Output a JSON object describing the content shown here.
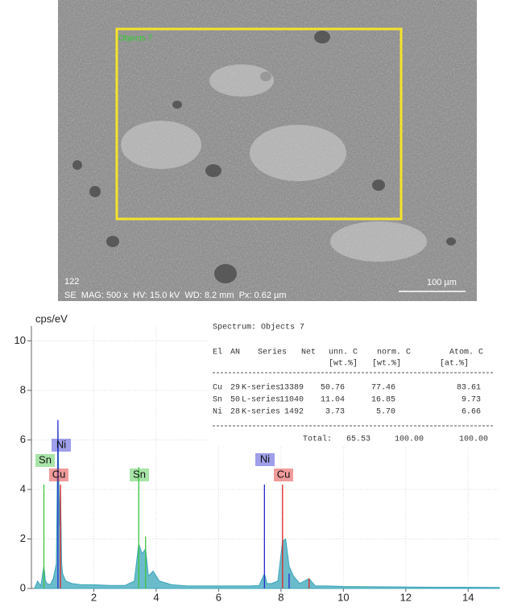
{
  "image": {
    "region_label": "Objects 7",
    "frame_number": "122",
    "info": "SE  MAG: 500 x  HV: 15.0 kV  WD: 8.2 mm  Px: 0.62 µm",
    "scale_bar": "100 µm"
  },
  "chart_data": {
    "type": "spectrum",
    "y_label": "cps/eV",
    "xlim": [
      0,
      15
    ],
    "ylim": [
      0,
      10.6
    ],
    "xticks": [
      2,
      4,
      6,
      8,
      10,
      12,
      14
    ],
    "yticks": [
      0,
      2,
      4,
      6,
      8,
      10
    ],
    "grid": true,
    "spectrum": {
      "color": "#3aa6b9",
      "x": [
        0.1,
        0.2,
        0.3,
        0.35,
        0.4,
        0.45,
        0.5,
        0.6,
        0.7,
        0.8,
        0.85,
        0.9,
        0.93,
        0.97,
        1.0,
        1.1,
        1.3,
        1.6,
        2.0,
        2.5,
        3.0,
        3.3,
        3.44,
        3.55,
        3.66,
        3.75,
        3.9,
        4.1,
        4.5,
        5,
        5.5,
        6,
        6.5,
        7,
        7.3,
        7.47,
        7.55,
        7.7,
        7.9,
        8.05,
        8.15,
        8.26,
        8.4,
        8.6,
        8.9,
        9.1,
        9.5,
        10,
        11,
        12,
        13,
        14,
        15
      ],
      "values": [
        0,
        0.3,
        0.1,
        0.5,
        0.9,
        0.3,
        0.2,
        0.15,
        0.4,
        1.0,
        6.7,
        2.5,
        4.2,
        1.0,
        0.6,
        0.3,
        0.2,
        0.15,
        0.15,
        0.12,
        0.12,
        0.3,
        1.8,
        1.4,
        1.6,
        0.5,
        0.7,
        0.3,
        0.15,
        0.1,
        0.1,
        0.1,
        0.1,
        0.1,
        0.12,
        0.6,
        0.2,
        0.2,
        0.3,
        1.9,
        2.0,
        0.9,
        0.5,
        0.2,
        0.4,
        0.1,
        0.1,
        0.08,
        0.07,
        0.06,
        0.05,
        0.05,
        0.04
      ]
    },
    "series": [
      {
        "name": "Sn",
        "color": "#3ec43e",
        "x": [
          0.4,
          3.44,
          3.66
        ],
        "values": [
          4.2,
          4.9,
          2.1
        ]
      },
      {
        "name": "Cu",
        "color": "#e02424",
        "x": [
          0.93,
          8.05,
          8.9
        ],
        "values": [
          4.2,
          4.2,
          0.4
        ]
      },
      {
        "name": "Ni",
        "color": "#2a2ad0",
        "x": [
          0.85,
          7.47,
          8.26
        ],
        "values": [
          6.8,
          4.2,
          0.6
        ]
      }
    ]
  },
  "table": {
    "title": "Spectrum: Objects 7",
    "header": [
      "El",
      "AN",
      "Series",
      "Net",
      "unn. C",
      "norm. C",
      "Atom. C"
    ],
    "units": [
      "[wt.%]",
      "[wt.%]",
      "[at.%]"
    ],
    "rows": [
      [
        "Cu",
        "29",
        "K-series",
        "13389",
        "50.76",
        "77.46",
        "83.61"
      ],
      [
        "Sn",
        "50",
        "L-series",
        "11040",
        "11.04",
        "16.85",
        "9.73"
      ],
      [
        "Ni",
        "28",
        "K-series",
        "1492",
        "3.73",
        "5.70",
        "6.66"
      ]
    ],
    "total_label": "Total:",
    "total": [
      "65.53",
      "100.00",
      "100.00"
    ]
  }
}
